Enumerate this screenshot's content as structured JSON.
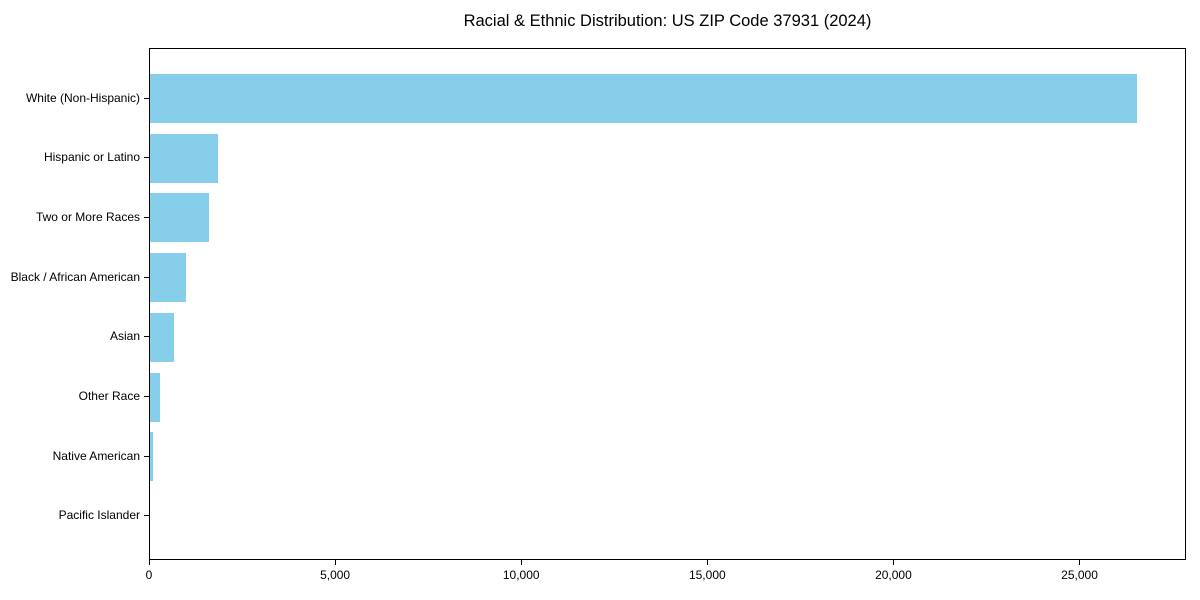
{
  "figure": {
    "background": "#ffffff",
    "text_color": "#000000",
    "spine_color": "#000000"
  },
  "chart_data": {
    "type": "bar",
    "orientation": "horizontal",
    "title": "Racial & Ethnic Distribution: US ZIP Code 37931 (2024)",
    "categories": [
      "White (Non-Hispanic)",
      "Hispanic or Latino",
      "Two or More Races",
      "Black / African American",
      "Asian",
      "Other Race",
      "Native American",
      "Pacific Islander"
    ],
    "values": [
      26530,
      1830,
      1590,
      970,
      645,
      270,
      80,
      0
    ],
    "bar_color": "#87CEEB",
    "xlabel": "",
    "ylabel": "",
    "xlim": [
      0,
      27860
    ],
    "xticks": [
      0,
      5000,
      10000,
      15000,
      20000,
      25000
    ],
    "xtick_labels": [
      "0",
      "5,000",
      "10,000",
      "15,000",
      "20,000",
      "25,000"
    ],
    "grid": false,
    "legend": "none",
    "value_axis": "x",
    "category_order": "top-to-bottom"
  }
}
